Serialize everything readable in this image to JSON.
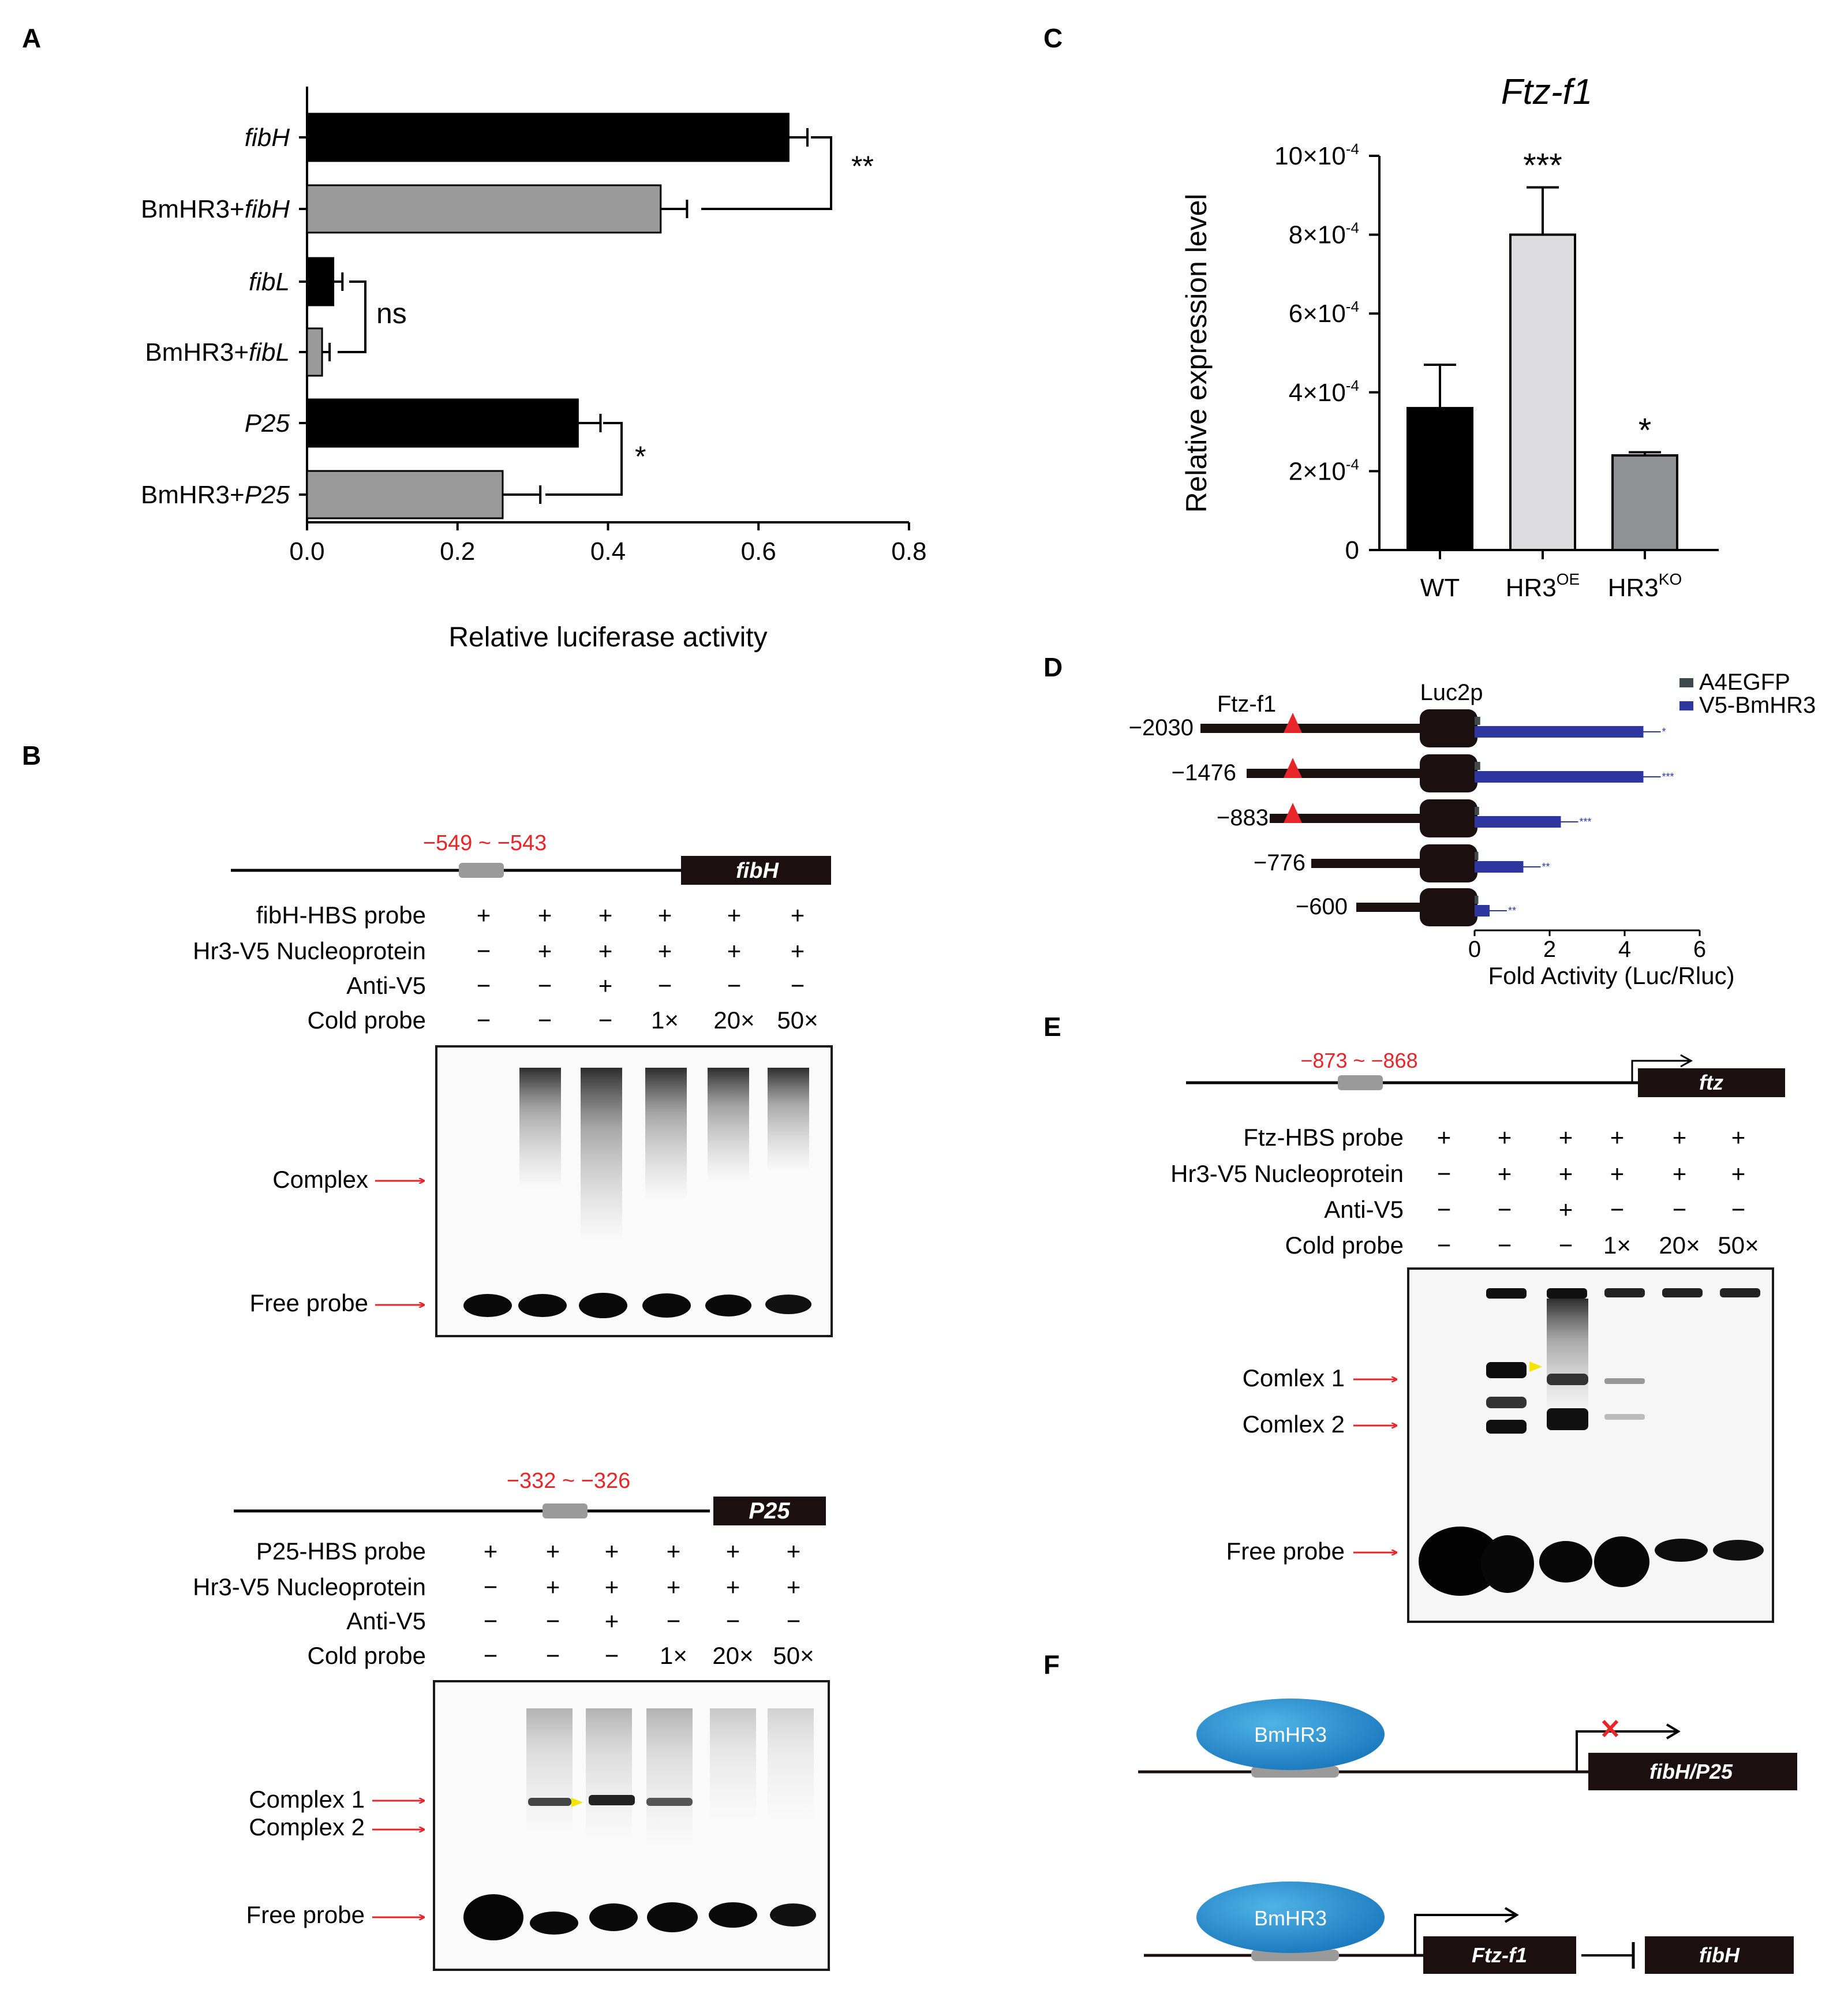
{
  "panels": {
    "a": "A",
    "b": "B",
    "c": "C",
    "d": "D",
    "e": "E",
    "f": "F"
  },
  "chart_data": [
    {
      "id": "A",
      "type": "bar",
      "orientation": "horizontal",
      "categories": [
        "fibH",
        "BmHR3+fibH",
        "fibL",
        "BmHR3+fibL",
        "P25",
        "BmHR3+P25"
      ],
      "values": [
        0.64,
        0.47,
        0.035,
        0.02,
        0.36,
        0.26
      ],
      "errors": [
        0.025,
        0.035,
        0.012,
        0.01,
        0.03,
        0.05
      ],
      "colors": [
        "#000000",
        "#9a9a9a",
        "#000000",
        "#9a9a9a",
        "#000000",
        "#9a9a9a"
      ],
      "xlabel": "Relative luciferase activity",
      "xlim": [
        0,
        0.8
      ],
      "xticks": [
        "0.0",
        "0.2",
        "0.4",
        "0.6",
        "0.8"
      ],
      "significance": [
        "**",
        "ns",
        "*"
      ]
    },
    {
      "id": "C",
      "type": "bar",
      "title": "Ftz-f1",
      "categories": [
        "WT",
        "HR3",
        "HR3"
      ],
      "category_superscripts": [
        "",
        "OE",
        "KO"
      ],
      "values": [
        3.6,
        8.0,
        2.4
      ],
      "errors": [
        1.1,
        1.2,
        0.08
      ],
      "colors": [
        "#000000",
        "#dcdcdf",
        "#8e9294"
      ],
      "ylabel": "Relative expression level",
      "ylim": [
        0,
        10
      ],
      "yticks": [
        "0",
        "2×10",
        "4×10",
        "6×10",
        "8×10",
        "10×10"
      ],
      "ytick_exponent": "-4",
      "significance": [
        "",
        "***",
        "*"
      ]
    },
    {
      "id": "D",
      "type": "bar",
      "orientation": "horizontal",
      "categories": [
        "−2030",
        "−1476",
        "−883",
        "−776",
        "−600"
      ],
      "series": [
        {
          "name": "A4EGFP",
          "values": [
            0.15,
            0.15,
            0.12,
            0.1,
            0.1
          ],
          "color": "#3f4a4c"
        },
        {
          "name": "V5-BmHR3",
          "values": [
            4.5,
            4.5,
            2.3,
            1.3,
            0.4
          ],
          "color": "#2e37a0"
        }
      ],
      "significance": [
        "*",
        "***",
        "***",
        "**",
        "**"
      ],
      "xlabel": "Fold Activity (Luc/Rluc)",
      "xlim": [
        0,
        6
      ],
      "xticks": [
        "0",
        "2",
        "4",
        "6"
      ],
      "gene_label": "Ftz-f1",
      "reporter_label": "Luc2p"
    }
  ],
  "B": {
    "fibH": {
      "region": "−549 ~ −543",
      "gene": "fibH",
      "rows": [
        {
          "label": "fibH-HBS probe",
          "marks": [
            "+",
            "+",
            "+",
            "+",
            "+",
            "+"
          ]
        },
        {
          "label": "Hr3-V5 Nucleoprotein",
          "marks": [
            "−",
            "+",
            "+",
            "+",
            "+",
            "+"
          ]
        },
        {
          "label": "Anti-V5",
          "marks": [
            "−",
            "−",
            "+",
            "−",
            "−",
            "−"
          ]
        },
        {
          "label": "Cold probe",
          "marks": [
            "−",
            "−",
            "−",
            "1×",
            "20×",
            "50×"
          ]
        }
      ],
      "bands": [
        "Complex",
        "Free probe"
      ]
    },
    "p25": {
      "region": "−332 ~ −326",
      "gene": "P25",
      "rows": [
        {
          "label": "P25-HBS probe",
          "marks": [
            "+",
            "+",
            "+",
            "+",
            "+",
            "+"
          ]
        },
        {
          "label": "Hr3-V5 Nucleoprotein",
          "marks": [
            "−",
            "+",
            "+",
            "+",
            "+",
            "+"
          ]
        },
        {
          "label": "Anti-V5",
          "marks": [
            "−",
            "−",
            "+",
            "−",
            "−",
            "−"
          ]
        },
        {
          "label": "Cold probe",
          "marks": [
            "−",
            "−",
            "−",
            "1×",
            "20×",
            "50×"
          ]
        }
      ],
      "bands": [
        "Complex 1",
        "Complex 2",
        "Free probe"
      ]
    }
  },
  "E": {
    "region": "−873 ~ −868",
    "gene": "ftz",
    "rows": [
      {
        "label": "Ftz-HBS probe",
        "marks": [
          "+",
          "+",
          "+",
          "+",
          "+",
          "+"
        ]
      },
      {
        "label": "Hr3-V5 Nucleoprotein",
        "marks": [
          "−",
          "+",
          "+",
          "+",
          "+",
          "+"
        ]
      },
      {
        "label": "Anti-V5",
        "marks": [
          "−",
          "−",
          "+",
          "−",
          "−",
          "−"
        ]
      },
      {
        "label": "Cold probe",
        "marks": [
          "−",
          "−",
          "−",
          "1×",
          "20×",
          "50×"
        ]
      }
    ],
    "bands": [
      "Comlex 1",
      "Comlex 2",
      "Free probe"
    ]
  },
  "F": {
    "top": {
      "protein": "BmHR3",
      "gene": "fibH/P25"
    },
    "bottom": {
      "protein": "BmHR3",
      "gene1": "Ftz-f1",
      "gene2": "fibH"
    }
  }
}
